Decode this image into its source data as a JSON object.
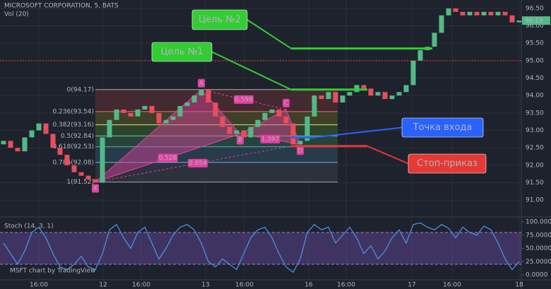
{
  "chart_data": {
    "type": "candlestick",
    "title": "MICROSOFT CORPORATION, 5, BATS",
    "subtitle": "Vol (20)",
    "watermark": "MSFT chart by TradingView",
    "xlim": [
      -0.5,
      73.5
    ],
    "xticks": [
      {
        "value": 5,
        "label": "16:00"
      },
      {
        "value": 14.1,
        "label": "12"
      },
      {
        "value": 19.5,
        "label": "16:00"
      },
      {
        "value": 28.6,
        "label": "13"
      },
      {
        "value": 34.1,
        "label": "16:00"
      },
      {
        "value": 43.2,
        "label": "16"
      },
      {
        "value": 48.5,
        "label": "16:00"
      },
      {
        "value": 57.8,
        "label": "17"
      },
      {
        "value": 63.5,
        "label": "16:00"
      },
      {
        "value": 73,
        "label": "18"
      }
    ],
    "ylim": [
      90.66,
      96.74
    ],
    "yticks": [
      {
        "value": 96.5,
        "label": "96.50"
      },
      {
        "value": 96,
        "label": "96.00"
      },
      {
        "value": 95.5,
        "label": "95.50"
      },
      {
        "value": 95,
        "label": "95.00"
      },
      {
        "value": 94.5,
        "label": "94.50"
      },
      {
        "value": 94,
        "label": "94.00"
      },
      {
        "value": 93.5,
        "label": "93.50"
      },
      {
        "value": 93,
        "label": "93.00"
      },
      {
        "value": 92.5,
        "label": "92.50"
      },
      {
        "value": 92,
        "label": "92.00"
      },
      {
        "value": 91.5,
        "label": "91.50"
      },
      {
        "value": 91,
        "label": "91.00"
      }
    ],
    "up_color": "#53b987",
    "down_color": "#eb4d5c",
    "open": [
      92.6,
      92.7,
      92.5,
      92.4,
      92.8,
      93.0,
      93.2,
      92.9,
      92.5,
      92.3,
      92.0,
      91.8,
      91.7,
      91.6,
      91.5,
      92.8,
      93.3,
      93.6,
      93.5,
      93.4,
      93.6,
      93.7,
      93.5,
      93.2,
      93.3,
      93.4,
      93.7,
      93.8,
      94.0,
      94.17,
      93.8,
      93.4,
      93.1,
      92.9,
      93.0,
      92.8,
      93.1,
      93.3,
      93.5,
      93.6,
      93.4,
      93.2,
      92.6,
      92.7,
      93.4,
      94.0,
      93.9,
      94.1,
      93.8,
      94.0,
      94.1,
      94.3,
      94.2,
      94.0,
      94.1,
      93.9,
      94.0,
      94.1,
      94.3,
      95.0,
      95.3,
      95.4,
      95.8,
      96.3,
      96.5,
      96.4,
      96.3,
      96.4,
      96.3,
      96.4,
      96.3,
      96.4,
      96.3,
      96.1
    ],
    "close": [
      92.7,
      92.5,
      92.4,
      92.8,
      93.0,
      93.2,
      92.9,
      92.5,
      92.3,
      92.0,
      91.8,
      91.7,
      91.6,
      91.5,
      92.8,
      93.3,
      93.6,
      93.5,
      93.4,
      93.6,
      93.7,
      93.5,
      93.2,
      93.3,
      93.4,
      93.7,
      93.8,
      94.0,
      94.17,
      93.8,
      93.4,
      93.1,
      92.9,
      93.0,
      92.8,
      93.1,
      93.3,
      93.5,
      93.6,
      93.4,
      93.2,
      92.6,
      92.7,
      93.4,
      94.0,
      93.9,
      94.1,
      93.8,
      94.0,
      94.1,
      94.3,
      94.2,
      94.0,
      94.1,
      93.9,
      94.0,
      94.1,
      94.3,
      95.0,
      95.3,
      95.4,
      95.8,
      96.3,
      96.5,
      96.4,
      96.3,
      96.4,
      96.3,
      96.4,
      96.3,
      96.4,
      96.3,
      96.1,
      96.15
    ],
    "last_price": {
      "value": 96.15,
      "label": "96.15"
    },
    "alert_line": {
      "value": 95,
      "color": "#e53935"
    },
    "fib_levels": [
      {
        "label": "0(94.17)",
        "value": 94.17,
        "color": "#b0b0b0",
        "band": "#4a2c33"
      },
      {
        "label": "0.236(93.54)",
        "value": 93.54,
        "color": "#e57373",
        "band": "#474528"
      },
      {
        "label": "0.382(93.16)",
        "value": 93.16,
        "color": "#dce775",
        "band": "#2f4a2f"
      },
      {
        "label": "0.5(92.84)",
        "value": 92.84,
        "color": "#81c784",
        "band": "#284a40"
      },
      {
        "label": "0.618(92.53)",
        "value": 92.53,
        "color": "#4db6ac",
        "band": "#2a3f50"
      },
      {
        "label": "0.786(92.08)",
        "value": 92.08,
        "color": "#64b5f6",
        "band": "#30343f"
      },
      {
        "label": "1(91.52)",
        "value": 91.52,
        "color": "#9e9e9e"
      }
    ],
    "pattern": {
      "color": "#e040a0",
      "points": [
        {
          "label": "X",
          "x": 13,
          "value": 91.52
        },
        {
          "label": "A",
          "x": 28,
          "value": 94.17
        },
        {
          "label": "B",
          "x": 33.5,
          "value": 92.9
        },
        {
          "label": "C",
          "x": 40,
          "value": 93.6
        },
        {
          "label": "D",
          "x": 42,
          "value": 92.6
        }
      ],
      "ratios": [
        {
          "label": "0.598",
          "between": [
            "A",
            "C"
          ]
        },
        {
          "label": "1.397",
          "between": [
            "B",
            "D"
          ]
        },
        {
          "label": "0.528",
          "between": [
            "X",
            "B"
          ]
        },
        {
          "label": "0.654",
          "between": [
            "X",
            "D"
          ]
        }
      ]
    },
    "levels": [
      {
        "label": "Цель №2",
        "value": 95.35,
        "color": "#33cc33",
        "text_color": "#000000"
      },
      {
        "label": "Цель №1",
        "value": 94.17,
        "color": "#33cc33",
        "text_color": "#000000"
      },
      {
        "label": "Точка входа",
        "value": 92.8,
        "color": "#2962ff",
        "text_color": "#ffffff"
      },
      {
        "label": "Стоп-приказ",
        "value": 92.55,
        "color": "#e53935",
        "text_color": "#ffffff"
      }
    ],
    "oscillator": {
      "title": "Stoch (14, 3, 1)",
      "color": "#4a90e2",
      "band": [
        20,
        80
      ],
      "ylim": [
        0,
        100
      ],
      "yticks": [
        {
          "value": 100,
          "label": "100.0000"
        },
        {
          "value": 75,
          "label": "75.0000"
        },
        {
          "value": 50,
          "label": "50.0000"
        },
        {
          "value": 25,
          "label": "25.0000"
        },
        {
          "value": 0,
          "label": "0.0000"
        }
      ],
      "values": [
        60,
        40,
        20,
        45,
        80,
        90,
        70,
        40,
        15,
        10,
        20,
        35,
        15,
        10,
        40,
        85,
        95,
        70,
        50,
        80,
        90,
        60,
        30,
        50,
        75,
        90,
        95,
        85,
        60,
        25,
        15,
        30,
        20,
        10,
        40,
        70,
        85,
        90,
        70,
        40,
        15,
        5,
        30,
        80,
        95,
        85,
        90,
        60,
        75,
        90,
        70,
        40,
        55,
        30,
        45,
        70,
        85,
        60,
        95,
        98,
        90,
        85,
        95,
        88,
        70,
        90,
        80,
        75,
        92,
        85,
        60,
        30,
        10,
        25
      ]
    }
  }
}
